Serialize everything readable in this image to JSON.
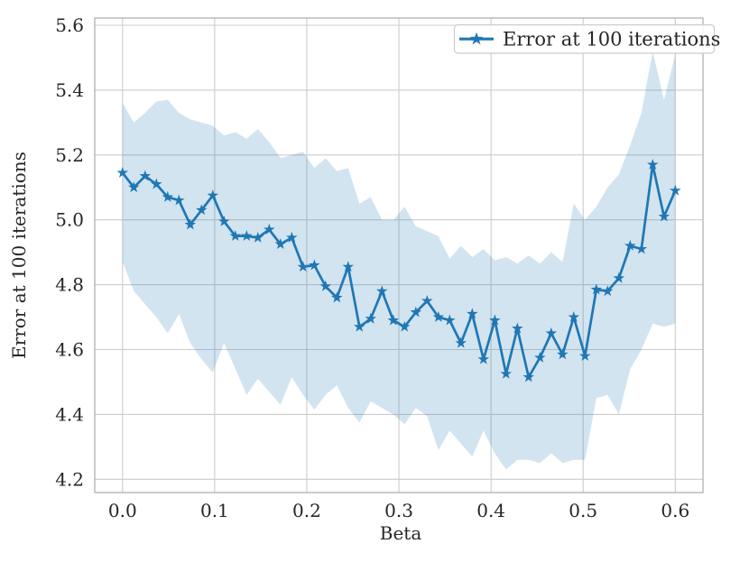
{
  "axes": {
    "xlabel": "Beta",
    "ylabel": "Error at 100 iterations",
    "x_tick_labels": [
      "0.0",
      "0.1",
      "0.2",
      "0.3",
      "0.4",
      "0.5",
      "0.6"
    ],
    "x_tick_values": [
      0.0,
      0.1,
      0.2,
      0.3,
      0.4,
      0.5,
      0.6
    ],
    "y_tick_labels": [
      "4.2",
      "4.4",
      "4.6",
      "4.8",
      "5.0",
      "5.2",
      "5.4",
      "5.6"
    ],
    "y_tick_values": [
      4.2,
      4.4,
      4.6,
      4.8,
      5.0,
      5.2,
      5.4,
      5.6
    ]
  },
  "legend": {
    "label": "Error at 100 iterations"
  },
  "colors": {
    "line": "#1f77b4",
    "marker": "#1f77b4",
    "band_fill": "rgba(31,119,180,0.2)",
    "grid": "#cccccc",
    "spine": "#b0b0b0",
    "text": "#262626",
    "legend_border": "#cccccc",
    "legend_fill": "rgba(255,255,255,0.85)"
  },
  "chart_data": {
    "type": "line",
    "title": "",
    "xlabel": "Beta",
    "ylabel": "Error at 100 iterations",
    "xlim": [
      -0.03,
      0.63
    ],
    "ylim": [
      4.16,
      5.62
    ],
    "grid": true,
    "legend_position": "upper right",
    "marker": "star",
    "x": [
      0.0,
      0.0122,
      0.0245,
      0.0367,
      0.049,
      0.0612,
      0.0735,
      0.0857,
      0.098,
      0.1102,
      0.1224,
      0.1347,
      0.1469,
      0.1592,
      0.1714,
      0.1837,
      0.1959,
      0.2082,
      0.2204,
      0.2327,
      0.2449,
      0.2571,
      0.2694,
      0.2816,
      0.2939,
      0.3061,
      0.3184,
      0.3306,
      0.3429,
      0.3551,
      0.3673,
      0.3796,
      0.3918,
      0.4041,
      0.4163,
      0.4286,
      0.4408,
      0.4531,
      0.4653,
      0.4776,
      0.4898,
      0.502,
      0.5143,
      0.5265,
      0.5388,
      0.551,
      0.5633,
      0.5755,
      0.5878,
      0.6
    ],
    "series": [
      {
        "name": "Error at 100 iterations",
        "values": [
          5.145,
          5.1,
          5.135,
          5.11,
          5.07,
          5.06,
          4.985,
          5.03,
          5.075,
          4.995,
          4.95,
          4.95,
          4.945,
          4.97,
          4.925,
          4.945,
          4.855,
          4.86,
          4.795,
          4.76,
          4.855,
          4.67,
          4.695,
          4.78,
          4.69,
          4.67,
          4.715,
          4.75,
          4.7,
          4.69,
          4.62,
          4.71,
          4.57,
          4.69,
          4.525,
          4.665,
          4.515,
          4.575,
          4.65,
          4.585,
          4.7,
          4.58,
          4.785,
          4.78,
          4.82,
          4.92,
          4.91,
          5.17,
          5.01,
          5.09
        ]
      },
      {
        "name": "band_upper",
        "values": [
          5.36,
          5.3,
          5.33,
          5.365,
          5.37,
          5.33,
          5.31,
          5.3,
          5.29,
          5.26,
          5.27,
          5.25,
          5.28,
          5.24,
          5.19,
          5.2,
          5.21,
          5.16,
          5.19,
          5.15,
          5.16,
          5.05,
          5.07,
          5.0,
          5.0,
          5.04,
          4.98,
          4.965,
          4.95,
          4.88,
          4.92,
          4.885,
          4.91,
          4.875,
          4.885,
          4.865,
          4.89,
          4.865,
          4.9,
          4.87,
          5.05,
          5.0,
          5.04,
          5.1,
          5.14,
          5.23,
          5.33,
          5.52,
          5.37,
          5.51
        ]
      },
      {
        "name": "band_lower",
        "values": [
          4.87,
          4.78,
          4.74,
          4.7,
          4.65,
          4.71,
          4.62,
          4.57,
          4.53,
          4.62,
          4.54,
          4.46,
          4.51,
          4.47,
          4.43,
          4.515,
          4.46,
          4.415,
          4.46,
          4.49,
          4.42,
          4.375,
          4.44,
          4.42,
          4.4,
          4.37,
          4.42,
          4.395,
          4.29,
          4.35,
          4.31,
          4.27,
          4.35,
          4.28,
          4.23,
          4.26,
          4.26,
          4.25,
          4.28,
          4.25,
          4.26,
          4.26,
          4.45,
          4.46,
          4.4,
          4.54,
          4.6,
          4.68,
          4.67,
          4.68
        ]
      }
    ]
  }
}
